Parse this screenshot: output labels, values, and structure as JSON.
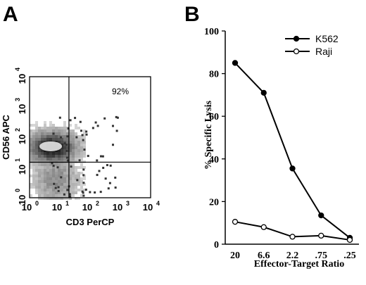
{
  "panel_a": {
    "letter": "A",
    "quadrant_label": "92%",
    "chart_data": {
      "type": "density-scatter",
      "xlabel": "CD3 PerCP",
      "ylabel": "CD56 APC",
      "x_scale": "log",
      "y_scale": "log",
      "xlim": [
        1,
        10000
      ],
      "ylim": [
        1,
        10000
      ],
      "x_ticks": [
        {
          "base": "10",
          "exp": "0"
        },
        {
          "base": "10",
          "exp": "1"
        },
        {
          "base": "10",
          "exp": "2"
        },
        {
          "base": "10",
          "exp": "3"
        },
        {
          "base": "10",
          "exp": "4"
        }
      ],
      "y_ticks": [
        {
          "base": "10",
          "exp": "0"
        },
        {
          "base": "10",
          "exp": "1"
        },
        {
          "base": "10",
          "exp": "2"
        },
        {
          "base": "10",
          "exp": "3"
        },
        {
          "base": "10",
          "exp": "4"
        }
      ],
      "quadrant_gates": {
        "x": 20,
        "y": 15
      },
      "population_center": {
        "x": 5,
        "y": 50
      }
    }
  },
  "panel_b": {
    "letter": "B",
    "chart_data": {
      "type": "line",
      "xlabel": "Effector-Target Ratio",
      "ylabel": "% Specific Lysis",
      "categories": [
        "20",
        "6.6",
        "2.2",
        ".75",
        ".25"
      ],
      "ylim": [
        0,
        100
      ],
      "y_ticks": [
        "0",
        "20",
        "40",
        "60",
        "80",
        "100"
      ],
      "legend": "top-right",
      "series": [
        {
          "name": "K562",
          "values": [
            85,
            71,
            35.5,
            13.5,
            3
          ],
          "marker": "filled-circle",
          "color": "#000000"
        },
        {
          "name": "Raji",
          "values": [
            10.5,
            8,
            3.5,
            4,
            2
          ],
          "marker": "open-circle",
          "color": "#000000"
        }
      ]
    }
  }
}
